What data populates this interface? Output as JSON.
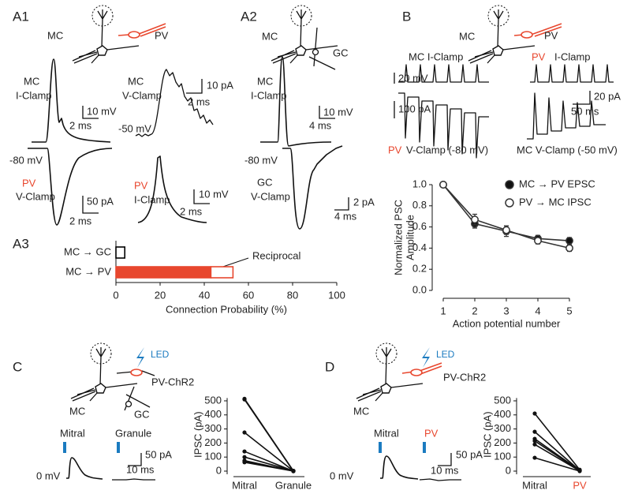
{
  "panels": {
    "A1": {
      "label": "A1",
      "texts": [
        "MC",
        "PV",
        "MC",
        "I-Clamp",
        "10 mV",
        "2 ms",
        "MC",
        "V-Clamp",
        "10 pA",
        "2 ms",
        "-50 mV",
        "-80 mV",
        "PV",
        "V-Clamp",
        "50 pA",
        "2 ms",
        "PV",
        "I-Clamp",
        "10 mV",
        "2 ms"
      ]
    },
    "A2": {
      "label": "A2",
      "texts": [
        "MC",
        "GC",
        "MC",
        "I-Clamp",
        "10 mV",
        "4 ms",
        "-80 mV",
        "GC",
        "V-Clamp",
        "2 pA",
        "4 ms"
      ]
    },
    "A3": {
      "label": "A3"
    },
    "B": {
      "label": "B",
      "texts": [
        "MC",
        "PV",
        "MC I-Clamp",
        "20 mV",
        "PV",
        "I-Clamp",
        "100 pA",
        "20 pA",
        "50 ms",
        "PV",
        "V-Clamp (-80 mV)",
        "MC V-Clamp (-50 mV)"
      ]
    },
    "C": {
      "label": "C",
      "texts": [
        "LED",
        "MC",
        "PV-ChR2",
        "GC",
        "Mitral",
        "Granule",
        "50 pA",
        "10 ms",
        "0 mV"
      ]
    },
    "D": {
      "label": "D",
      "texts": [
        "LED",
        "MC",
        "PV-ChR2",
        "Mitral",
        "PV",
        "50 pA",
        "10 ms",
        "0 mV"
      ]
    }
  },
  "chart_data": [
    {
      "type": "bar",
      "categories": [
        "MC → GC",
        "MC → PV"
      ],
      "series": [
        {
          "color": "#e8472e",
          "values": [
            null,
            43
          ]
        },
        {
          "color": "#ffffff",
          "edgecolors": [
            "#000000",
            "#e8472e"
          ],
          "values": [
            4,
            10
          ]
        }
      ],
      "annotation": "Reciprocal",
      "xlabel": "Connection Probability (%)",
      "xlim": [
        0,
        100
      ],
      "xticks": [
        0,
        20,
        40,
        60,
        80,
        100
      ]
    },
    {
      "type": "line",
      "x": [
        1,
        2,
        3,
        4,
        5
      ],
      "xlabel": "Action potential number",
      "ylabel": [
        "Normalized PSC",
        "Amplitude"
      ],
      "xlim": [
        1,
        5
      ],
      "xticks": [
        1,
        2,
        3,
        4,
        5
      ],
      "ylim": [
        0,
        1
      ],
      "yticks": [
        {
          "value": 0,
          "label": "0.0"
        },
        {
          "value": 0.2,
          "label": "0.2"
        },
        {
          "value": 0.4,
          "label": "0.4"
        },
        {
          "value": 0.6,
          "label": "0.6"
        },
        {
          "value": 0.8,
          "label": "0.8"
        },
        {
          "value": 1,
          "label": "1.0"
        }
      ],
      "legend": "upper right",
      "series": [
        {
          "name": "MC → PV EPSC",
          "color": "#333333",
          "markerfacecolor": "#111111",
          "values": [
            1.0,
            0.63,
            0.56,
            0.49,
            0.47
          ],
          "errors": [
            0,
            0.04,
            0.05,
            0.03,
            0.03
          ]
        },
        {
          "name": "PV → MC IPSC",
          "color": "#333333",
          "markerfacecolor": "#ffffff",
          "values": [
            1.0,
            0.67,
            0.57,
            0.47,
            0.4
          ],
          "errors": [
            0,
            0.05,
            0.04,
            0.03,
            0.03
          ]
        }
      ]
    },
    {
      "type": "slope",
      "categories": [
        "Mitral",
        "Granule"
      ],
      "category_colors": [
        "#222222",
        "#222222"
      ],
      "ylabel": "IPSC (pA)",
      "ylim": [
        0,
        520
      ],
      "yticks": [
        0,
        100,
        200,
        300,
        400,
        500
      ],
      "color": "#111111",
      "series": [
        {
          "values": [
            510,
            0
          ]
        },
        {
          "values": [
            515,
            2
          ]
        },
        {
          "values": [
            275,
            1
          ]
        },
        {
          "values": [
            140,
            0
          ]
        },
        {
          "values": [
            100,
            2
          ]
        },
        {
          "values": [
            75,
            0
          ]
        },
        {
          "values": [
            68,
            1
          ]
        },
        {
          "values": [
            63,
            0
          ]
        }
      ]
    },
    {
      "type": "slope",
      "categories": [
        "Mitral",
        "PV"
      ],
      "category_colors": [
        "#222222",
        "#e8472e"
      ],
      "ylabel": "IPSC (pA)",
      "ylim": [
        0,
        520
      ],
      "yticks": [
        0,
        100,
        200,
        300,
        400,
        500
      ],
      "color": "#111111",
      "series": [
        {
          "values": [
            410,
            10
          ]
        },
        {
          "values": [
            280,
            5
          ]
        },
        {
          "values": [
            230,
            5
          ]
        },
        {
          "values": [
            215,
            3
          ]
        },
        {
          "values": [
            190,
            2
          ]
        },
        {
          "values": [
            95,
            0
          ]
        }
      ]
    }
  ]
}
